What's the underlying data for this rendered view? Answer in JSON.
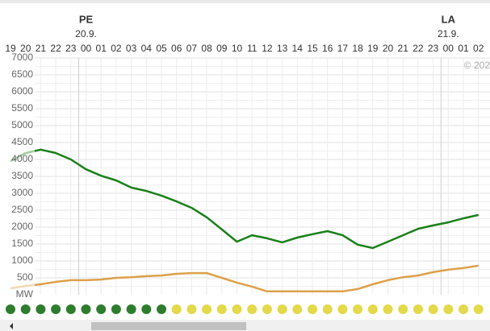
{
  "chart_data": {
    "type": "line",
    "categories": [
      "19",
      "20",
      "21",
      "22",
      "23",
      "00",
      "01",
      "02",
      "03",
      "04",
      "05",
      "06",
      "07",
      "08",
      "09",
      "10",
      "11",
      "12",
      "13",
      "14",
      "15",
      "16",
      "17",
      "18",
      "19",
      "20",
      "21",
      "22",
      "23",
      "00",
      "01",
      "02"
    ],
    "days": [
      {
        "name": "PE",
        "date": "20.9."
      },
      {
        "name": "LA",
        "date": "21.9."
      }
    ],
    "series": [
      {
        "color": "#1a801a",
        "values": [
          3950,
          4190,
          4290,
          4190,
          4000,
          3710,
          3520,
          3380,
          3170,
          3070,
          2930,
          2760,
          2570,
          2290,
          1930,
          1570,
          1760,
          1670,
          1550,
          1690,
          1790,
          1880,
          1760,
          1480,
          1380,
          1570,
          1760,
          1950,
          2050,
          2140,
          2260,
          2360
        ]
      },
      {
        "color": "#dda04a",
        "values": [
          190,
          260,
          310,
          380,
          430,
          430,
          450,
          500,
          520,
          550,
          570,
          620,
          640,
          640,
          500,
          360,
          240,
          100,
          100,
          100,
          100,
          100,
          100,
          170,
          310,
          430,
          520,
          570,
          670,
          740,
          790,
          860
        ]
      }
    ],
    "status_colors": [
      "#2e7d2e",
      "#2e7d2e",
      "#2e7d2e",
      "#2e7d2e",
      "#2e7d2e",
      "#2e7d2e",
      "#2e7d2e",
      "#2e7d2e",
      "#2e7d2e",
      "#2e7d2e",
      "#2e7d2e",
      "#e3d94a",
      "#e3d94a",
      "#e3d94a",
      "#e3d94a",
      "#e3d94a",
      "#e3d94a",
      "#e3d94a",
      "#e3d94a",
      "#e3d94a",
      "#e3d94a",
      "#e3d94a",
      "#e3d94a",
      "#e3d94a",
      "#e3d94a",
      "#e3d94a",
      "#e3d94a",
      "#e3d94a",
      "#e3d94a",
      "#e3d94a",
      "#e3d94a",
      "#e3d94a"
    ],
    "y_label": "MW",
    "copyright": "© 202",
    "ylim": [
      0,
      7000
    ],
    "yticks": [
      500,
      1000,
      1500,
      2000,
      2500,
      3000,
      3500,
      4000,
      4500,
      5000,
      5500,
      6000,
      6500,
      7000
    ],
    "grid": true
  }
}
